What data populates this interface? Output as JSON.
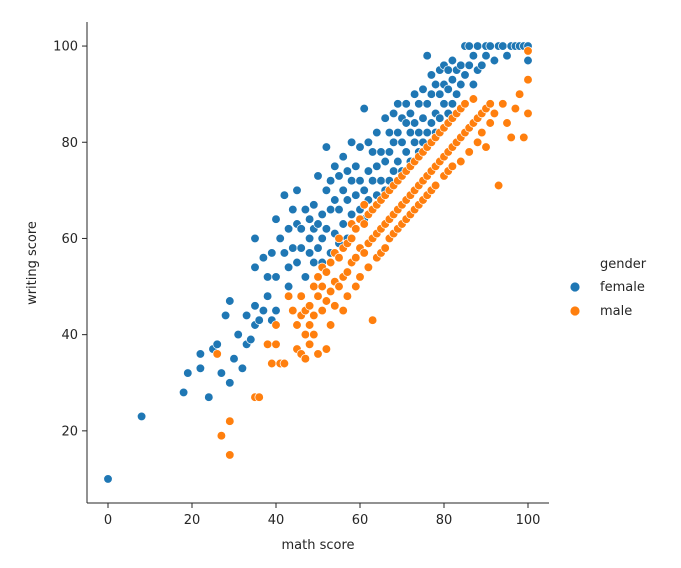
{
  "chart_data": {
    "type": "scatter",
    "title": "",
    "xlabel": "math score",
    "ylabel": "writing score",
    "xlim": [
      -5,
      105
    ],
    "ylim": [
      5,
      105
    ],
    "x_ticks": [
      0,
      20,
      40,
      60,
      80,
      100
    ],
    "y_ticks": [
      20,
      40,
      60,
      80,
      100
    ],
    "grid": false,
    "legend": {
      "title": "gender",
      "placement": "right",
      "entries": [
        "female",
        "male"
      ]
    },
    "series": [
      {
        "name": "female",
        "color": "#1f77b4",
        "points": [
          [
            0,
            10
          ],
          [
            8,
            23
          ],
          [
            18,
            28
          ],
          [
            19,
            32
          ],
          [
            22,
            33
          ],
          [
            22,
            36
          ],
          [
            24,
            27
          ],
          [
            25,
            37
          ],
          [
            26,
            38
          ],
          [
            27,
            32
          ],
          [
            28,
            44
          ],
          [
            29,
            30
          ],
          [
            29,
            47
          ],
          [
            30,
            35
          ],
          [
            31,
            40
          ],
          [
            32,
            33
          ],
          [
            33,
            44
          ],
          [
            33,
            38
          ],
          [
            34,
            39
          ],
          [
            35,
            42
          ],
          [
            35,
            46
          ],
          [
            35,
            54
          ],
          [
            35,
            60
          ],
          [
            36,
            43
          ],
          [
            37,
            45
          ],
          [
            37,
            56
          ],
          [
            38,
            48
          ],
          [
            38,
            52
          ],
          [
            39,
            43
          ],
          [
            39,
            57
          ],
          [
            40,
            52
          ],
          [
            40,
            64
          ],
          [
            40,
            45
          ],
          [
            41,
            60
          ],
          [
            42,
            57
          ],
          [
            42,
            69
          ],
          [
            43,
            50
          ],
          [
            43,
            54
          ],
          [
            43,
            62
          ],
          [
            44,
            58
          ],
          [
            44,
            66
          ],
          [
            45,
            55
          ],
          [
            45,
            70
          ],
          [
            45,
            63
          ],
          [
            46,
            58
          ],
          [
            46,
            62
          ],
          [
            47,
            52
          ],
          [
            47,
            66
          ],
          [
            48,
            57
          ],
          [
            48,
            60
          ],
          [
            48,
            64
          ],
          [
            49,
            55
          ],
          [
            49,
            67
          ],
          [
            49,
            62
          ],
          [
            50,
            58
          ],
          [
            50,
            63
          ],
          [
            50,
            73
          ],
          [
            51,
            60
          ],
          [
            51,
            65
          ],
          [
            51,
            55
          ],
          [
            52,
            62
          ],
          [
            52,
            70
          ],
          [
            52,
            79
          ],
          [
            53,
            57
          ],
          [
            53,
            66
          ],
          [
            53,
            72
          ],
          [
            54,
            61
          ],
          [
            54,
            75
          ],
          [
            54,
            68
          ],
          [
            55,
            59
          ],
          [
            55,
            66
          ],
          [
            55,
            73
          ],
          [
            56,
            63
          ],
          [
            56,
            70
          ],
          [
            56,
            77
          ],
          [
            57,
            60
          ],
          [
            57,
            68
          ],
          [
            57,
            74
          ],
          [
            58,
            65
          ],
          [
            58,
            72
          ],
          [
            58,
            80
          ],
          [
            59,
            62
          ],
          [
            59,
            69
          ],
          [
            59,
            75
          ],
          [
            60,
            66
          ],
          [
            60,
            72
          ],
          [
            60,
            79
          ],
          [
            61,
            64
          ],
          [
            61,
            70
          ],
          [
            61,
            87
          ],
          [
            62,
            68
          ],
          [
            62,
            74
          ],
          [
            62,
            80
          ],
          [
            63,
            66
          ],
          [
            63,
            72
          ],
          [
            63,
            78
          ],
          [
            64,
            69
          ],
          [
            64,
            75
          ],
          [
            64,
            82
          ],
          [
            65,
            68
          ],
          [
            65,
            72
          ],
          [
            65,
            78
          ],
          [
            66,
            70
          ],
          [
            66,
            76
          ],
          [
            66,
            85
          ],
          [
            67,
            72
          ],
          [
            67,
            78
          ],
          [
            67,
            82
          ],
          [
            68,
            74
          ],
          [
            68,
            80
          ],
          [
            68,
            86
          ],
          [
            69,
            76
          ],
          [
            69,
            82
          ],
          [
            69,
            88
          ],
          [
            70,
            74
          ],
          [
            70,
            80
          ],
          [
            70,
            85
          ],
          [
            71,
            78
          ],
          [
            71,
            84
          ],
          [
            71,
            88
          ],
          [
            72,
            76
          ],
          [
            72,
            82
          ],
          [
            72,
            86
          ],
          [
            73,
            80
          ],
          [
            73,
            84
          ],
          [
            73,
            90
          ],
          [
            74,
            78
          ],
          [
            74,
            82
          ],
          [
            74,
            88
          ],
          [
            75,
            80
          ],
          [
            75,
            85
          ],
          [
            75,
            91
          ],
          [
            76,
            82
          ],
          [
            76,
            88
          ],
          [
            76,
            98
          ],
          [
            77,
            84
          ],
          [
            77,
            90
          ],
          [
            77,
            94
          ],
          [
            78,
            82
          ],
          [
            78,
            86
          ],
          [
            78,
            92
          ],
          [
            79,
            85
          ],
          [
            79,
            90
          ],
          [
            79,
            95
          ],
          [
            80,
            88
          ],
          [
            80,
            92
          ],
          [
            80,
            96
          ],
          [
            81,
            86
          ],
          [
            81,
            91
          ],
          [
            81,
            95
          ],
          [
            82,
            88
          ],
          [
            82,
            93
          ],
          [
            82,
            97
          ],
          [
            83,
            90
          ],
          [
            83,
            95
          ],
          [
            84,
            92
          ],
          [
            84,
            96
          ],
          [
            85,
            100
          ],
          [
            85,
            94
          ],
          [
            86,
            96
          ],
          [
            86,
            100
          ],
          [
            87,
            92
          ],
          [
            87,
            98
          ],
          [
            88,
            100
          ],
          [
            88,
            95
          ],
          [
            89,
            96
          ],
          [
            90,
            98
          ],
          [
            90,
            100
          ],
          [
            91,
            100
          ],
          [
            92,
            97
          ],
          [
            93,
            100
          ],
          [
            94,
            100
          ],
          [
            95,
            98
          ],
          [
            96,
            100
          ],
          [
            97,
            100
          ],
          [
            98,
            100
          ],
          [
            99,
            100
          ],
          [
            100,
            97
          ],
          [
            100,
            100
          ]
        ]
      },
      {
        "name": "male",
        "color": "#ff7f0e",
        "points": [
          [
            26,
            36
          ],
          [
            27,
            19
          ],
          [
            29,
            15
          ],
          [
            29,
            22
          ],
          [
            35,
            27
          ],
          [
            36,
            27
          ],
          [
            38,
            38
          ],
          [
            39,
            34
          ],
          [
            40,
            42
          ],
          [
            40,
            38
          ],
          [
            41,
            34
          ],
          [
            42,
            34
          ],
          [
            43,
            48
          ],
          [
            44,
            45
          ],
          [
            45,
            42
          ],
          [
            45,
            37
          ],
          [
            46,
            48
          ],
          [
            46,
            44
          ],
          [
            46,
            36
          ],
          [
            47,
            45
          ],
          [
            47,
            40
          ],
          [
            47,
            35
          ],
          [
            48,
            46
          ],
          [
            48,
            42
          ],
          [
            48,
            38
          ],
          [
            49,
            50
          ],
          [
            49,
            44
          ],
          [
            49,
            40
          ],
          [
            50,
            48
          ],
          [
            50,
            52
          ],
          [
            50,
            36
          ],
          [
            51,
            45
          ],
          [
            51,
            50
          ],
          [
            51,
            54
          ],
          [
            52,
            47
          ],
          [
            52,
            53
          ],
          [
            52,
            37
          ],
          [
            53,
            49
          ],
          [
            53,
            55
          ],
          [
            53,
            42
          ],
          [
            54,
            51
          ],
          [
            54,
            57
          ],
          [
            54,
            46
          ],
          [
            55,
            50
          ],
          [
            55,
            56
          ],
          [
            55,
            60
          ],
          [
            56,
            52
          ],
          [
            56,
            58
          ],
          [
            56,
            45
          ],
          [
            57,
            53
          ],
          [
            57,
            59
          ],
          [
            57,
            48
          ],
          [
            58,
            55
          ],
          [
            58,
            60
          ],
          [
            58,
            63
          ],
          [
            59,
            56
          ],
          [
            59,
            62
          ],
          [
            59,
            50
          ],
          [
            60,
            58
          ],
          [
            60,
            64
          ],
          [
            60,
            52
          ],
          [
            61,
            57
          ],
          [
            61,
            63
          ],
          [
            61,
            67
          ],
          [
            62,
            59
          ],
          [
            62,
            65
          ],
          [
            62,
            54
          ],
          [
            63,
            60
          ],
          [
            63,
            66
          ],
          [
            63,
            43
          ],
          [
            64,
            61
          ],
          [
            64,
            67
          ],
          [
            64,
            56
          ],
          [
            65,
            62
          ],
          [
            65,
            68
          ],
          [
            65,
            57
          ],
          [
            66,
            63
          ],
          [
            66,
            69
          ],
          [
            66,
            58
          ],
          [
            67,
            64
          ],
          [
            67,
            70
          ],
          [
            67,
            60
          ],
          [
            68,
            65
          ],
          [
            68,
            71
          ],
          [
            68,
            61
          ],
          [
            69,
            66
          ],
          [
            69,
            72
          ],
          [
            69,
            62
          ],
          [
            70,
            67
          ],
          [
            70,
            73
          ],
          [
            70,
            63
          ],
          [
            71,
            68
          ],
          [
            71,
            74
          ],
          [
            71,
            64
          ],
          [
            72,
            69
          ],
          [
            72,
            75
          ],
          [
            72,
            65
          ],
          [
            73,
            70
          ],
          [
            73,
            76
          ],
          [
            73,
            66
          ],
          [
            74,
            71
          ],
          [
            74,
            77
          ],
          [
            74,
            67
          ],
          [
            75,
            72
          ],
          [
            75,
            78
          ],
          [
            75,
            68
          ],
          [
            76,
            73
          ],
          [
            76,
            79
          ],
          [
            76,
            69
          ],
          [
            77,
            74
          ],
          [
            77,
            80
          ],
          [
            77,
            70
          ],
          [
            78,
            75
          ],
          [
            78,
            81
          ],
          [
            78,
            71
          ],
          [
            79,
            76
          ],
          [
            79,
            82
          ],
          [
            80,
            77
          ],
          [
            80,
            83
          ],
          [
            80,
            73
          ],
          [
            81,
            78
          ],
          [
            81,
            84
          ],
          [
            81,
            74
          ],
          [
            82,
            79
          ],
          [
            82,
            85
          ],
          [
            82,
            75
          ],
          [
            83,
            80
          ],
          [
            83,
            86
          ],
          [
            84,
            81
          ],
          [
            84,
            87
          ],
          [
            84,
            76
          ],
          [
            85,
            82
          ],
          [
            85,
            88
          ],
          [
            86,
            83
          ],
          [
            86,
            78
          ],
          [
            87,
            84
          ],
          [
            87,
            89
          ],
          [
            88,
            85
          ],
          [
            88,
            80
          ],
          [
            89,
            86
          ],
          [
            89,
            82
          ],
          [
            90,
            87
          ],
          [
            90,
            79
          ],
          [
            91,
            88
          ],
          [
            91,
            84
          ],
          [
            92,
            86
          ],
          [
            93,
            71
          ],
          [
            94,
            88
          ],
          [
            95,
            84
          ],
          [
            96,
            81
          ],
          [
            97,
            87
          ],
          [
            98,
            90
          ],
          [
            99,
            81
          ],
          [
            100,
            86
          ],
          [
            100,
            93
          ],
          [
            100,
            99
          ]
        ]
      }
    ]
  }
}
